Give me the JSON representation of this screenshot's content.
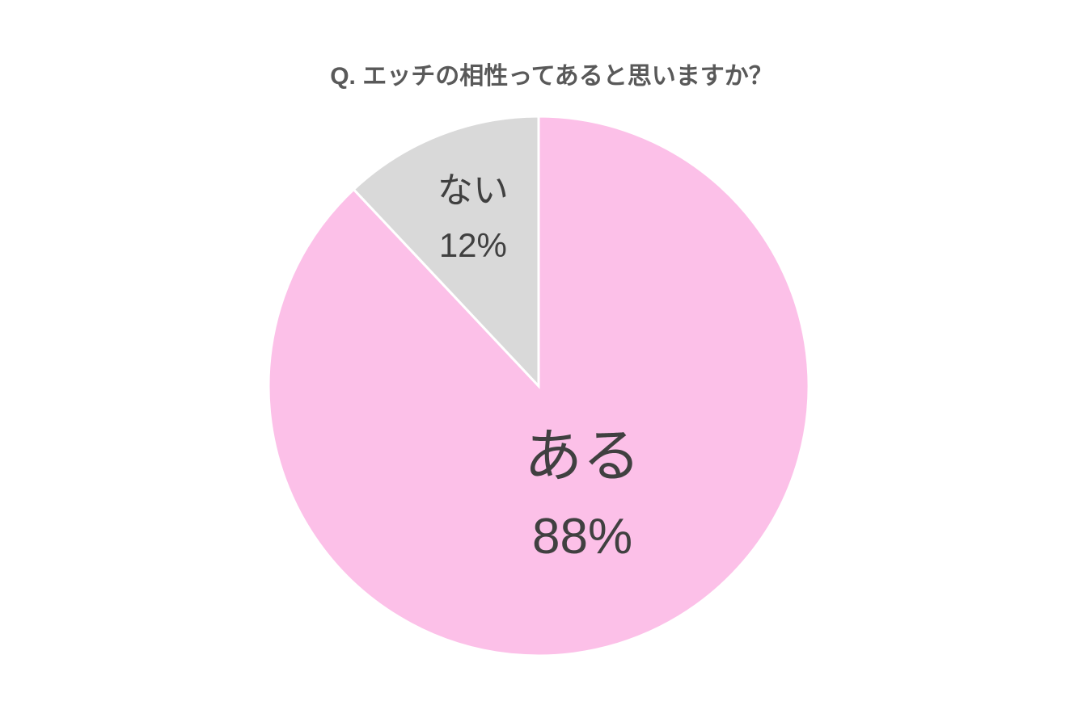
{
  "chart_data": {
    "type": "pie",
    "title": "Q. エッチの相性ってあると思いますか？",
    "categories": [
      "ある",
      "ない"
    ],
    "values": [
      88,
      12
    ],
    "value_labels": [
      "88%",
      "12%"
    ],
    "colors": [
      "#fcc0e8",
      "#d9d9d9"
    ]
  }
}
